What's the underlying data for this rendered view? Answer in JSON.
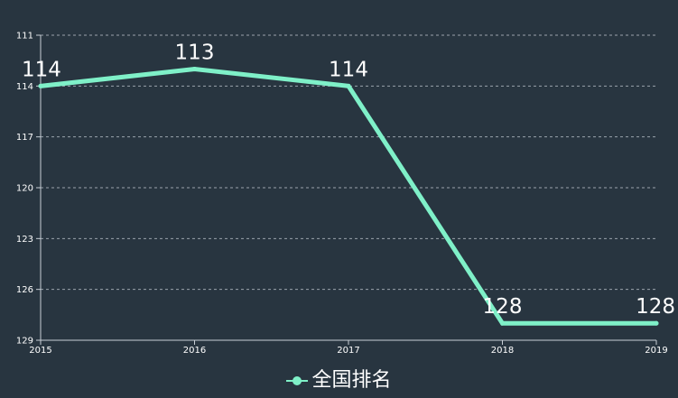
{
  "chart_data": {
    "type": "line",
    "categories": [
      "2015",
      "2016",
      "2017",
      "2018",
      "2019"
    ],
    "y_ticks": [
      111,
      114,
      117,
      120,
      123,
      126,
      129
    ],
    "ylim": [
      111,
      129
    ],
    "y_inverted": true,
    "grid": true,
    "legend_position": "bottom",
    "series": [
      {
        "name": "全国排名",
        "values": [
          114,
          113,
          114,
          128,
          128
        ]
      }
    ]
  },
  "colors": {
    "background": "#283540",
    "series": "#7ff0c8",
    "axis": "#c8cfd6",
    "grid": "#b8c0c8",
    "text": "#ffffff"
  }
}
